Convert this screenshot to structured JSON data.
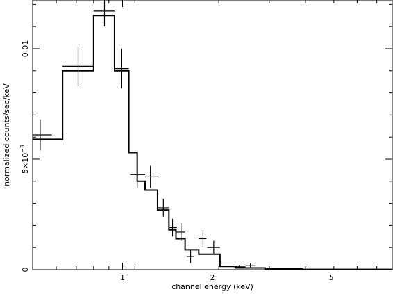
{
  "chart_data": {
    "type": "line",
    "title": "",
    "xlabel": "channel energy (keV)",
    "ylabel": "normalized counts/sec/keV",
    "xscale": "log",
    "xlim": [
      0.5,
      8.0
    ],
    "ylim": [
      0,
      0.0122
    ],
    "grid": false,
    "x_ticks": [
      {
        "value": 1,
        "label": "1"
      },
      {
        "value": 2,
        "label": "2"
      },
      {
        "value": 5,
        "label": "5"
      }
    ],
    "y_ticks": [
      {
        "value": 0,
        "label": "0"
      },
      {
        "value": 0.005,
        "label_base": "5×10",
        "label_exp": "−3"
      },
      {
        "value": 0.01,
        "label": "0.01"
      }
    ],
    "series": [
      {
        "kind": "data-points-with-errorbars",
        "points": [
          {
            "x": 0.53,
            "x_lo": 0.5,
            "x_hi": 0.58,
            "y": 0.0061,
            "err": 0.0007
          },
          {
            "x": 0.71,
            "x_lo": 0.63,
            "x_hi": 0.8,
            "y": 0.0092,
            "err": 0.0009
          },
          {
            "x": 0.87,
            "x_lo": 0.8,
            "x_hi": 0.94,
            "y": 0.0117,
            "err": 0.0007
          },
          {
            "x": 0.99,
            "x_lo": 0.94,
            "x_hi": 1.05,
            "y": 0.0091,
            "err": 0.0009
          },
          {
            "x": 1.12,
            "x_lo": 1.06,
            "x_hi": 1.19,
            "y": 0.0043,
            "err": 0.0006
          },
          {
            "x": 1.24,
            "x_lo": 1.19,
            "x_hi": 1.32,
            "y": 0.0042,
            "err": 0.0005
          },
          {
            "x": 1.37,
            "x_lo": 1.31,
            "x_hi": 1.43,
            "y": 0.0028,
            "err": 0.0004
          },
          {
            "x": 1.47,
            "x_lo": 1.43,
            "x_hi": 1.52,
            "y": 0.0019,
            "err": 0.0004
          },
          {
            "x": 1.57,
            "x_lo": 1.51,
            "x_hi": 1.62,
            "y": 0.0017,
            "err": 0.0004
          },
          {
            "x": 1.69,
            "x_lo": 1.64,
            "x_hi": 1.74,
            "y": 0.0006,
            "err": 0.0003
          },
          {
            "x": 1.86,
            "x_lo": 1.8,
            "x_hi": 1.91,
            "y": 0.0014,
            "err": 0.0004
          },
          {
            "x": 2.02,
            "x_lo": 1.92,
            "x_hi": 2.12,
            "y": 0.001,
            "err": 0.0003
          },
          {
            "x": 2.46,
            "x_lo": 2.36,
            "x_hi": 2.58,
            "y": 0.00013,
            "err": 8e-05
          },
          {
            "x": 2.68,
            "x_lo": 2.58,
            "x_hi": 2.78,
            "y": 0.00018,
            "err": 0.0001
          }
        ]
      },
      {
        "kind": "model-step",
        "edges": [
          0.5,
          0.58,
          0.63,
          0.8,
          0.94,
          1.05,
          1.12,
          1.19,
          1.31,
          1.43,
          1.51,
          1.62,
          1.8,
          1.92,
          2.12,
          2.4,
          3.0,
          4.0,
          8.0
        ],
        "values": [
          0.0059,
          0.0059,
          0.009,
          0.0115,
          0.009,
          0.0053,
          0.004,
          0.0036,
          0.0027,
          0.0018,
          0.0014,
          0.0009,
          0.0007,
          0.0007,
          0.00015,
          8e-05,
          3e-05,
          1e-05
        ]
      }
    ]
  }
}
